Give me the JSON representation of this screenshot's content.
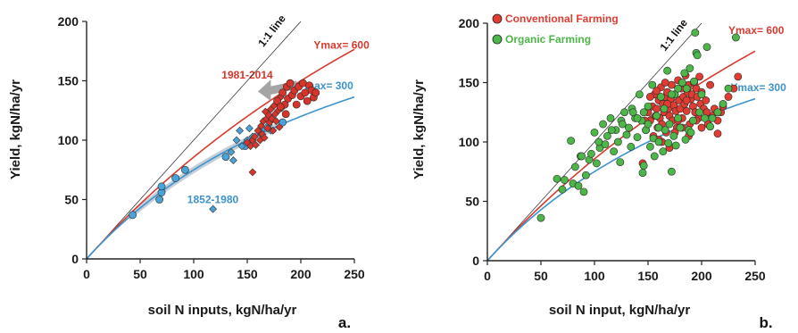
{
  "colors": {
    "conventional": "#e03c31",
    "organic": "#4cb648",
    "ymax600": "#d63b30",
    "ymax300": "#3d93cc",
    "historic_marker": "#4aa3d8",
    "modern_marker": "#d9342b",
    "band": "#b7c3cf",
    "arrow": "#a5a5a5"
  },
  "chart_data": [
    {
      "type": "scatter",
      "panel_label": "a.",
      "xlabel": "soil N inputs, kgN/ha/yr",
      "ylabel": "Yield, kgN/ha/yr",
      "xlim": [
        0,
        250
      ],
      "ylim": [
        0,
        200
      ],
      "xticks": [
        0,
        50,
        100,
        150,
        200,
        250
      ],
      "yticks": [
        0,
        50,
        100,
        150,
        200
      ],
      "grid": false,
      "lines": [
        {
          "name": "1:1 line",
          "kind": "identity"
        },
        {
          "name": "Ymax= 600",
          "kind": "hyperbola",
          "ymax": 600
        },
        {
          "name": "Ymax= 300",
          "kind": "hyperbola",
          "ymax": 300
        }
      ],
      "annotations": [
        {
          "text": "1981-2014",
          "x": 150,
          "y": 152
        },
        {
          "text": "1852-1980",
          "x": 94,
          "y": 47
        }
      ],
      "series": [
        {
          "name": "1852-1980",
          "marker": "circle",
          "points": [
            [
              43,
              37
            ],
            [
              68,
              50
            ],
            [
              70,
              56
            ],
            [
              70,
              61
            ],
            [
              83,
              68
            ],
            [
              92,
              75
            ],
            [
              130,
              86
            ],
            [
              148,
              95
            ],
            [
              183,
              115
            ]
          ]
        },
        {
          "name": "1852-1980",
          "marker": "diamond",
          "points": [
            [
              118,
              42
            ],
            [
              135,
              90
            ],
            [
              137,
              83
            ],
            [
              140,
              100
            ],
            [
              143,
              108
            ],
            [
              145,
              95
            ],
            [
              150,
              100
            ],
            [
              152,
              110
            ],
            [
              155,
              103
            ],
            [
              162,
              106
            ],
            [
              165,
              110
            ],
            [
              170,
              113
            ],
            [
              172,
              108
            ]
          ]
        },
        {
          "name": "1981-2014",
          "marker": "diamond",
          "points": [
            [
              155,
              73
            ],
            [
              150,
              98
            ],
            [
              153,
              95
            ],
            [
              155,
              100
            ],
            [
              157,
              103
            ],
            [
              158,
              96
            ],
            [
              160,
              108
            ],
            [
              162,
              100
            ],
            [
              163,
              112
            ],
            [
              164,
              105
            ],
            [
              165,
              116
            ],
            [
              166,
              102
            ],
            [
              167,
              124
            ],
            [
              168,
              118
            ],
            [
              169,
              110
            ],
            [
              170,
              121
            ],
            [
              171,
              115
            ],
            [
              172,
              126
            ],
            [
              173,
              118
            ],
            [
              174,
              108
            ],
            [
              175,
              129
            ],
            [
              176,
              122
            ],
            [
              177,
              116
            ],
            [
              178,
              132
            ],
            [
              179,
              125
            ],
            [
              180,
              111
            ],
            [
              181,
              136
            ],
            [
              182,
              127
            ]
          ]
        },
        {
          "name": "1981-2014",
          "marker": "circle",
          "points": [
            [
              183,
              140
            ],
            [
              185,
              130
            ],
            [
              187,
              145
            ],
            [
              188,
              135
            ],
            [
              190,
              148
            ],
            [
              192,
              138
            ],
            [
              194,
              142
            ],
            [
              196,
              130
            ],
            [
              198,
              145
            ],
            [
              200,
              137
            ],
            [
              202,
              148
            ],
            [
              204,
              140
            ],
            [
              206,
              133
            ],
            [
              208,
              146
            ],
            [
              210,
              142
            ],
            [
              212,
              136
            ],
            [
              214,
              140
            ],
            [
              178,
              133
            ],
            [
              181,
              128
            ],
            [
              186,
              122
            ]
          ]
        }
      ]
    },
    {
      "type": "scatter",
      "panel_label": "b.",
      "xlabel": "soil N input, kgN/ha/yr",
      "ylabel": "Yield, kgN/ha/yr",
      "xlim": [
        0,
        250
      ],
      "ylim": [
        0,
        200
      ],
      "xticks": [
        0,
        50,
        100,
        150,
        200,
        250
      ],
      "yticks": [
        0,
        50,
        100,
        150,
        200
      ],
      "grid": false,
      "lines": [
        {
          "name": "1:1 line",
          "kind": "identity"
        },
        {
          "name": "Ymax= 600",
          "kind": "hyperbola",
          "ymax": 600
        },
        {
          "name": "Ymax= 300",
          "kind": "hyperbola",
          "ymax": 300
        }
      ],
      "legend_position": "top-left",
      "series": [
        {
          "name": "Conventional Farming",
          "marker": "circle",
          "points": [
            [
              145,
              82
            ],
            [
              148,
              110
            ],
            [
              150,
              125
            ],
            [
              152,
              118
            ],
            [
              154,
              130
            ],
            [
              155,
              105
            ],
            [
              156,
              140
            ],
            [
              157,
              122
            ],
            [
              158,
              128
            ],
            [
              159,
              112
            ],
            [
              160,
              135
            ],
            [
              161,
              120
            ],
            [
              162,
              146
            ],
            [
              163,
              115
            ],
            [
              164,
              132
            ],
            [
              165,
              125
            ],
            [
              166,
              138
            ],
            [
              167,
              108
            ],
            [
              168,
              142
            ],
            [
              169,
              128
            ],
            [
              170,
              122
            ],
            [
              171,
              136
            ],
            [
              172,
              148
            ],
            [
              173,
              118
            ],
            [
              174,
              131
            ],
            [
              175,
              140
            ],
            [
              176,
              126
            ],
            [
              177,
              112
            ],
            [
              178,
              152
            ],
            [
              179,
              135
            ],
            [
              180,
              128
            ],
            [
              181,
              145
            ],
            [
              182,
              120
            ],
            [
              183,
              138
            ],
            [
              184,
              132
            ],
            [
              185,
              156
            ],
            [
              186,
              126
            ],
            [
              187,
              142
            ],
            [
              188,
              148
            ],
            [
              189,
              115
            ],
            [
              190,
              136
            ],
            [
              191,
              140
            ],
            [
              192,
              130
            ],
            [
              193,
              150
            ],
            [
              194,
              125
            ],
            [
              195,
              145
            ],
            [
              196,
              138
            ],
            [
              197,
              120
            ],
            [
              198,
              155
            ],
            [
              199,
              132
            ],
            [
              200,
              142
            ],
            [
              202,
              128
            ],
            [
              204,
              135
            ],
            [
              206,
              115
            ],
            [
              208,
              148
            ],
            [
              210,
              122
            ],
            [
              212,
              128
            ],
            [
              215,
              118
            ],
            [
              218,
              125
            ],
            [
              220,
              130
            ],
            [
              225,
              138
            ],
            [
              230,
              145
            ],
            [
              234,
              155
            ],
            [
              163,
              100
            ],
            [
              170,
              95
            ],
            [
              175,
              108
            ],
            [
              166,
              150
            ],
            [
              158,
              143
            ],
            [
              182,
              112
            ],
            [
              188,
              105
            ],
            [
              195,
              118
            ],
            [
              200,
              112
            ],
            [
              205,
              125
            ],
            [
              215,
              107
            ],
            [
              152,
              138
            ],
            [
              147,
              118
            ],
            [
              160,
              102
            ],
            [
              168,
              132
            ],
            [
              178,
              118
            ],
            [
              186,
              135
            ]
          ]
        },
        {
          "name": "Organic Farming",
          "marker": "circle",
          "points": [
            [
              50,
              36
            ],
            [
              65,
              69
            ],
            [
              72,
              68
            ],
            [
              78,
              101
            ],
            [
              80,
              65
            ],
            [
              82,
              79
            ],
            [
              85,
              63
            ],
            [
              87,
              88
            ],
            [
              90,
              58
            ],
            [
              92,
              72
            ],
            [
              95,
              85
            ],
            [
              97,
              90
            ],
            [
              100,
              108
            ],
            [
              102,
              82
            ],
            [
              105,
              95
            ],
            [
              108,
              115
            ],
            [
              110,
              98
            ],
            [
              112,
              105
            ],
            [
              115,
              120
            ],
            [
              118,
              92
            ],
            [
              120,
              110
            ],
            [
              122,
              100
            ],
            [
              124,
              83
            ],
            [
              125,
              118
            ],
            [
              128,
              125
            ],
            [
              130,
              106
            ],
            [
              132,
              112
            ],
            [
              134,
              96
            ],
            [
              135,
              128
            ],
            [
              138,
              120
            ],
            [
              140,
              104
            ],
            [
              142,
              140
            ],
            [
              144,
              118
            ],
            [
              145,
              74
            ],
            [
              146,
              80
            ],
            [
              148,
              110
            ],
            [
              150,
              130
            ],
            [
              152,
              96
            ],
            [
              154,
              148
            ],
            [
              155,
              103
            ],
            [
              156,
              88
            ],
            [
              158,
              122
            ],
            [
              160,
              100
            ],
            [
              162,
              138
            ],
            [
              164,
              92
            ],
            [
              165,
              128
            ],
            [
              166,
              110
            ],
            [
              168,
              160
            ],
            [
              169,
              99
            ],
            [
              170,
              115
            ],
            [
              172,
              75
            ],
            [
              174,
              105
            ],
            [
              175,
              140
            ],
            [
              176,
              97
            ],
            [
              178,
              120
            ],
            [
              180,
              112
            ],
            [
              182,
              150
            ],
            [
              184,
              158
            ],
            [
              185,
              102
            ],
            [
              186,
              145
            ],
            [
              188,
              110
            ],
            [
              189,
              162
            ],
            [
              190,
              108
            ],
            [
              192,
              118
            ],
            [
              193,
              151
            ],
            [
              194,
              192
            ],
            [
              195,
              175
            ],
            [
              196,
              173
            ],
            [
              198,
              125
            ],
            [
              200,
              140
            ],
            [
              203,
              120
            ],
            [
              205,
              180
            ],
            [
              208,
              113
            ],
            [
              210,
              120
            ],
            [
              215,
              125
            ],
            [
              220,
              132
            ],
            [
              225,
              145
            ],
            [
              232,
              188
            ],
            [
              70,
              60
            ],
            [
              88,
              88
            ],
            [
              104,
              100
            ],
            [
              116,
              110
            ],
            [
              126,
              115
            ],
            [
              136,
              125
            ],
            [
              146,
              125
            ],
            [
              178,
              145
            ],
            [
              140,
              120
            ],
            [
              150,
              115
            ],
            [
              160,
              112
            ],
            [
              172,
              140
            ]
          ]
        }
      ]
    }
  ]
}
